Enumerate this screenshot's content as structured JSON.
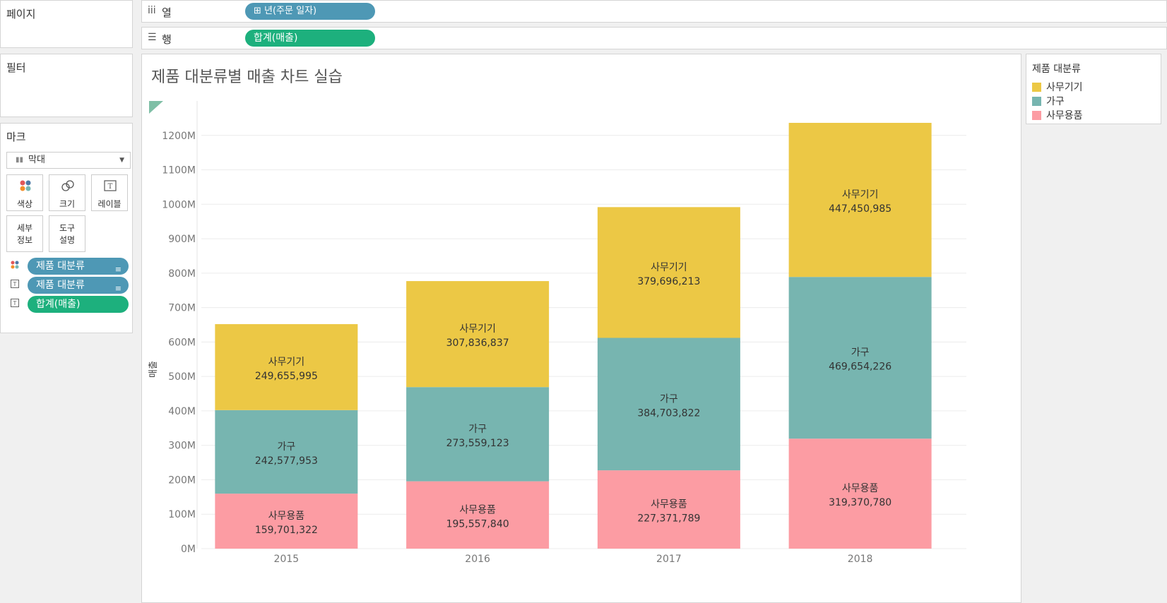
{
  "left_panel": {
    "pages_title": "페이지",
    "filters_title": "필터",
    "marks_title": "마크",
    "mark_type": "막대",
    "buttons": [
      {
        "label": "색상",
        "icon": "color-dots-icon"
      },
      {
        "label": "크기",
        "icon": "size-circles-icon"
      },
      {
        "label": "레이블",
        "icon": "text-label-icon"
      },
      {
        "label": "세부\n정보",
        "icon": "none"
      },
      {
        "label": "도구\n설명",
        "icon": "none"
      }
    ],
    "mark_pills": [
      {
        "label": "제품 대분류",
        "icon": "color-dots-icon",
        "color": "#4e98b5"
      },
      {
        "label": "제품 대분류",
        "icon": "text-label-icon",
        "color": "#4e98b5"
      },
      {
        "label": "합계(매출)",
        "icon": "text-label-icon",
        "color": "#1db07d"
      }
    ]
  },
  "shelves": {
    "columns": {
      "label": "열",
      "icon": "iii",
      "pill": "⊞ 년(주문 일자)"
    },
    "rows": {
      "label": "행",
      "icon": "☰",
      "pill": "합계(매출)"
    }
  },
  "legend": {
    "title": "제품 대분류",
    "items": [
      {
        "label": "사무기기",
        "color": "#ecc845"
      },
      {
        "label": "가구",
        "color": "#77b5b0"
      },
      {
        "label": "사무용품",
        "color": "#fc9ca3"
      }
    ]
  },
  "chart_data": {
    "type": "bar",
    "stacked": true,
    "title": "제품 대분류별 매출 차트 실습",
    "ylabel": "매출",
    "ylim": [
      0,
      1300000000
    ],
    "yticks": [
      0,
      100000000,
      200000000,
      300000000,
      400000000,
      500000000,
      600000000,
      700000000,
      800000000,
      900000000,
      1000000000,
      1100000000,
      1200000000
    ],
    "ytick_labels": [
      "0M",
      "100M",
      "200M",
      "300M",
      "400M",
      "500M",
      "600M",
      "700M",
      "800M",
      "900M",
      "1000M",
      "1100M",
      "1200M"
    ],
    "categories": [
      "2015",
      "2016",
      "2017",
      "2018"
    ],
    "series": [
      {
        "name": "사무용품",
        "color": "#fc9ca3",
        "values": [
          159701322,
          195557840,
          227371789,
          319370780
        ],
        "labels": [
          "159,701,322",
          "195,557,840",
          "227,371,789",
          "319,370,780"
        ]
      },
      {
        "name": "가구",
        "color": "#77b5b0",
        "values": [
          242577953,
          273559123,
          384703822,
          469654226
        ],
        "labels": [
          "242,577,953",
          "273,559,123",
          "384,703,822",
          "469,654,226"
        ]
      },
      {
        "name": "사무기기",
        "color": "#ecc845",
        "values": [
          249655995,
          307836837,
          379696213,
          447450985
        ],
        "labels": [
          "249,655,995",
          "307,836,837",
          "379,696,213",
          "447,450,985"
        ]
      }
    ]
  }
}
